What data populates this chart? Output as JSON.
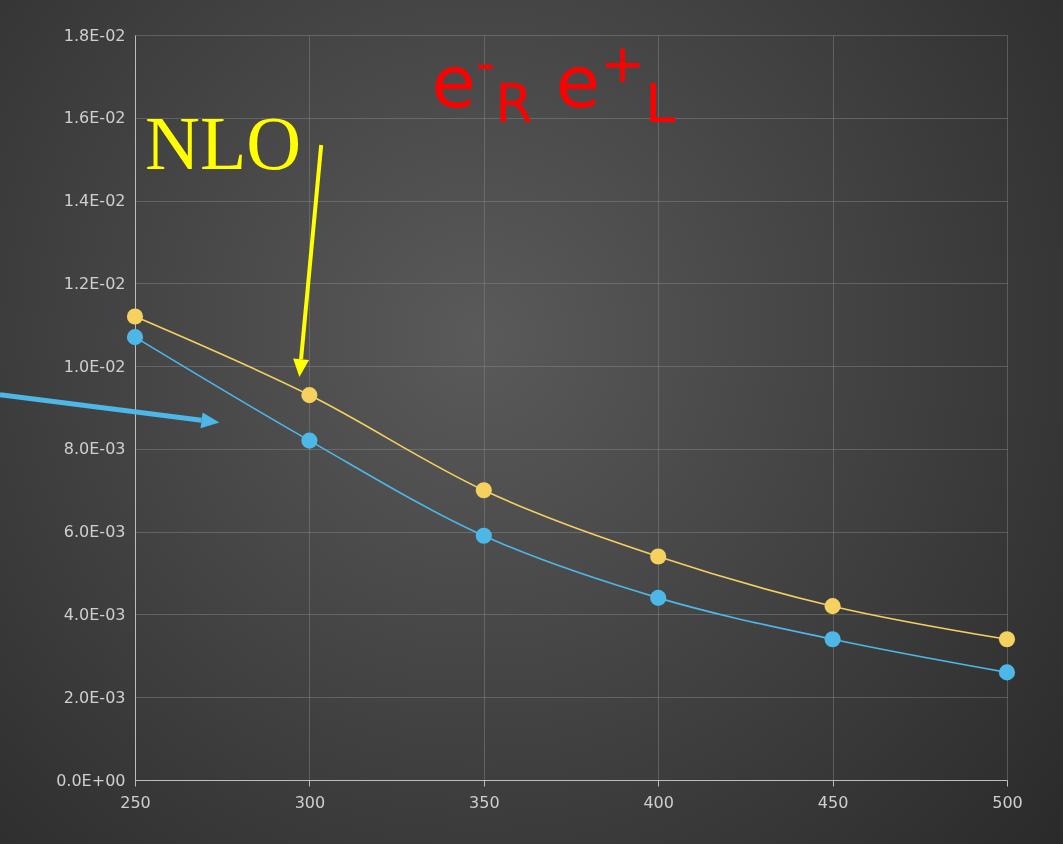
{
  "chart_data": {
    "type": "line",
    "x": [
      250,
      300,
      350,
      400,
      450,
      500
    ],
    "series": [
      {
        "color": "#f5d160",
        "values": [
          0.0112,
          0.0093,
          0.007,
          0.0054,
          0.0042,
          0.0034
        ]
      },
      {
        "color": "#4db8e8",
        "values": [
          0.0107,
          0.0082,
          0.0059,
          0.0044,
          0.0034,
          0.0026
        ]
      }
    ],
    "xlim": [
      250,
      500
    ],
    "xticks": [
      250,
      300,
      350,
      400,
      450,
      500
    ],
    "ylim": [
      0,
      0.018
    ],
    "yticks": [
      {
        "value": 0,
        "label": "0.0E+00"
      },
      {
        "value": 0.002,
        "label": "2.0E-03"
      },
      {
        "value": 0.004,
        "label": "4.0E-03"
      },
      {
        "value": 0.006,
        "label": "6.0E-03"
      },
      {
        "value": 0.008,
        "label": "8.0E-03"
      },
      {
        "value": 0.01,
        "label": "1.0E-02"
      },
      {
        "value": 0.012,
        "label": "1.2E-02"
      },
      {
        "value": 0.014,
        "label": "1.4E-02"
      },
      {
        "value": 0.016,
        "label": "1.6E-02"
      },
      {
        "value": 0.018,
        "label": "1.8E-02"
      }
    ],
    "grid": true,
    "marker": "circle",
    "line_style": "solid",
    "annotations": [
      "e$^{-}$$_{R}$ e$^{+}$$_{L}$",
      {
        "text": "NLO",
        "x": 300,
        "y": 0.0093
      }
    ]
  }
}
